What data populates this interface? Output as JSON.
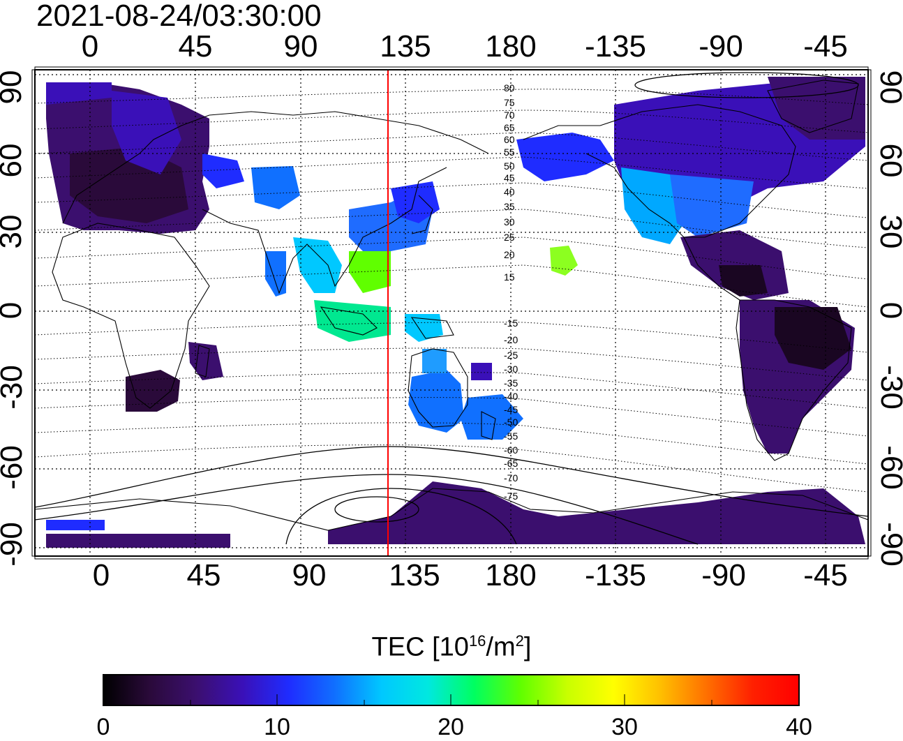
{
  "timestamp": "2021-08-24/03:30:00",
  "map": {
    "lon_ticks_top": [
      "0",
      "45",
      "90",
      "135",
      "180",
      "-135",
      "-90",
      "-45"
    ],
    "lon_ticks_bottom": [
      "0",
      "45",
      "90",
      "135",
      "180",
      "-135",
      "-90",
      "-45"
    ],
    "lat_ticks_left": [
      "90",
      "60",
      "30",
      "0",
      "-30",
      "-60",
      "-90"
    ],
    "lat_ticks_right": [
      "90",
      "60",
      "30",
      "0",
      "-30",
      "-60",
      "-90"
    ],
    "lon_range": [
      -23,
      337
    ],
    "lat_range": [
      -92,
      92
    ],
    "grid": true,
    "marker_line_longitude": 127.5,
    "marker_line_color": "#ff0000",
    "contour_labels_north": [
      "80",
      "75",
      "70",
      "65",
      "60",
      "55",
      "50",
      "45",
      "40",
      "35",
      "30",
      "25",
      "20",
      "15"
    ],
    "contour_labels_south": [
      "-15",
      "-20",
      "-25",
      "-30",
      "-35",
      "-40",
      "-45",
      "-50",
      "-55",
      "-60",
      "-65",
      "-70",
      "-75"
    ]
  },
  "colorbar": {
    "title_main": "TEC  [10",
    "title_exp": "16",
    "title_unit": "/m",
    "title_unit_exp": "2",
    "title_end": "]",
    "ticks": [
      "0",
      "10",
      "20",
      "30",
      "40"
    ],
    "range": [
      0,
      40
    ],
    "colors": [
      "#000000",
      "#2a0a3a",
      "#3b0f6e",
      "#3a10b8",
      "#1f2cff",
      "#1070ff",
      "#00c8ff",
      "#00e8e0",
      "#00ff60",
      "#60ff00",
      "#c8ff00",
      "#ffff00",
      "#ffc000",
      "#ff7000",
      "#ff2000",
      "#ff0000"
    ]
  }
}
